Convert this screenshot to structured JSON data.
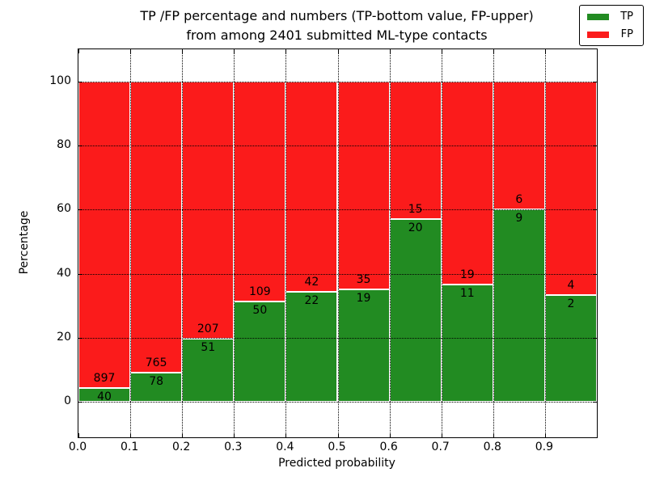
{
  "chart_data": {
    "type": "bar",
    "stacked": true,
    "title": "TP /FP percentage and numbers (TP-bottom value, FP-upper)\nfrom among 2401 submitted ML-type contacts",
    "xlabel": "Predicted probability",
    "ylabel": "Percentage",
    "x_tick_labels": [
      "0.0",
      "0.1",
      "0.2",
      "0.3",
      "0.4",
      "0.5",
      "0.6",
      "0.7",
      "0.8",
      "0.9"
    ],
    "y_tick_values": [
      0,
      20,
      40,
      60,
      80,
      100
    ],
    "xlim": [
      0,
      1
    ],
    "ylim": [
      -11,
      110
    ],
    "bin_width": 0.1,
    "grid": "dotted, drawn above bars",
    "legend_position": "upper right",
    "series": [
      {
        "name": "TP",
        "color": "#228b22",
        "counts": [
          40,
          78,
          51,
          50,
          22,
          19,
          20,
          11,
          9,
          2
        ]
      },
      {
        "name": "FP",
        "color": "#fb1b1b",
        "counts": [
          897,
          765,
          207,
          109,
          42,
          35,
          15,
          19,
          6,
          4
        ]
      }
    ],
    "tp_percent_of_bin": [
      4.27,
      9.25,
      19.77,
      31.45,
      34.38,
      35.19,
      57.14,
      36.67,
      60.0,
      33.33
    ],
    "bar_total_percent": 100
  }
}
